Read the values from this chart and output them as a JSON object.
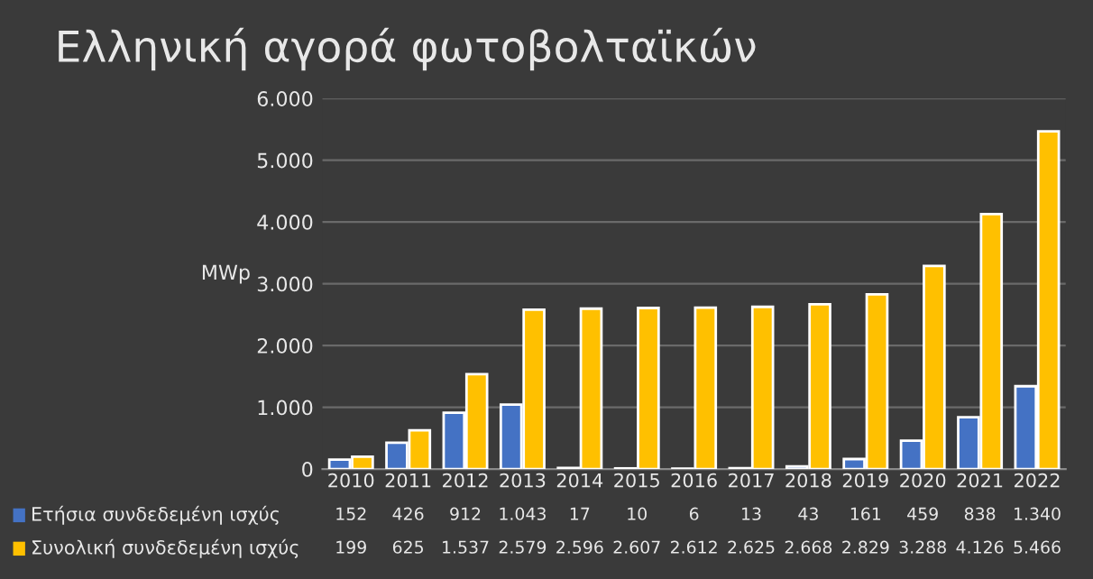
{
  "chart_data": {
    "type": "bar",
    "title": "Ελληνική αγορά φωτοβολταϊκών",
    "ylabel": "MWp",
    "categories": [
      "2010",
      "2011",
      "2012",
      "2013",
      "2014",
      "2015",
      "2016",
      "2017",
      "2018",
      "2019",
      "2020",
      "2021",
      "2022"
    ],
    "series": [
      {
        "name": "Ετήσια συνδεδεμένη ισχύς",
        "color": "#4472c4",
        "values": [
          152,
          426,
          912,
          1043,
          17,
          10,
          6,
          13,
          43,
          161,
          459,
          838,
          1340
        ],
        "value_labels": [
          "152",
          "426",
          "912",
          "1.043",
          "17",
          "10",
          "6",
          "13",
          "43",
          "161",
          "459",
          "838",
          "1.340"
        ]
      },
      {
        "name": "Συνολική συνδεδεμένη ισχύς",
        "color": "#ffc000",
        "values": [
          199,
          625,
          1537,
          2579,
          2596,
          2607,
          2612,
          2625,
          2668,
          2829,
          3288,
          4126,
          5466
        ],
        "value_labels": [
          "199",
          "625",
          "1.537",
          "2.579",
          "2.596",
          "2.607",
          "2.612",
          "2.625",
          "2.668",
          "2.829",
          "3.288",
          "4.126",
          "5.466"
        ]
      }
    ],
    "ylim": [
      0,
      6000
    ],
    "yticks": [
      {
        "value": 0,
        "label": "0"
      },
      {
        "value": 1000,
        "label": "1.000"
      },
      {
        "value": 2000,
        "label": "2.000"
      },
      {
        "value": 3000,
        "label": "3.000"
      },
      {
        "value": 4000,
        "label": "4.000"
      },
      {
        "value": 5000,
        "label": "5.000"
      },
      {
        "value": 6000,
        "label": "6.000"
      }
    ],
    "grid": "y",
    "legend": "bottom"
  }
}
